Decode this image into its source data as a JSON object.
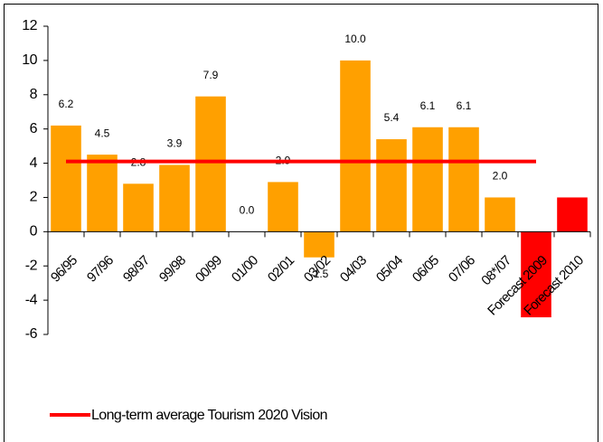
{
  "chart_data": {
    "type": "bar",
    "categories": [
      "96/95",
      "97/96",
      "98/97",
      "99/98",
      "00/99",
      "01/00",
      "02/01",
      "03/02",
      "04/03",
      "05/04",
      "06/05",
      "07/06",
      "08*/07",
      "Forecast 2009",
      "Forecast 2010"
    ],
    "values": [
      6.2,
      4.5,
      2.8,
      3.9,
      7.9,
      0.0,
      2.9,
      -1.5,
      10.0,
      5.4,
      6.1,
      6.1,
      2.0,
      -5.0,
      2.0
    ],
    "value_labels": [
      "6.2",
      "4.5",
      "2.8",
      "3.9",
      "7.9",
      "0.0",
      "2.9",
      "-1.5",
      "10.0",
      "5.4",
      "6.1",
      "6.1",
      "2.0",
      null,
      null
    ],
    "colors": [
      "#ffa000",
      "#ffa000",
      "#ffa000",
      "#ffa000",
      "#ffa000",
      "#ffa000",
      "#ffa000",
      "#ffa000",
      "#ffa000",
      "#ffa000",
      "#ffa000",
      "#ffa000",
      "#ffa000",
      "#ff0000",
      "#ff0000"
    ],
    "line": {
      "name": "Long-term average Tourism 2020 Vision",
      "color": "#ff0000",
      "values": [
        4.1,
        4.1,
        4.1,
        4.1,
        4.1,
        4.1,
        4.1,
        4.1,
        4.1,
        4.1,
        4.1,
        4.1,
        4.1,
        4.1,
        null
      ]
    },
    "ylim": [
      -6,
      12
    ],
    "yticks": [
      -6,
      -4,
      -2,
      0,
      2,
      4,
      6,
      8,
      10,
      12
    ],
    "legend": "bottom-left"
  }
}
